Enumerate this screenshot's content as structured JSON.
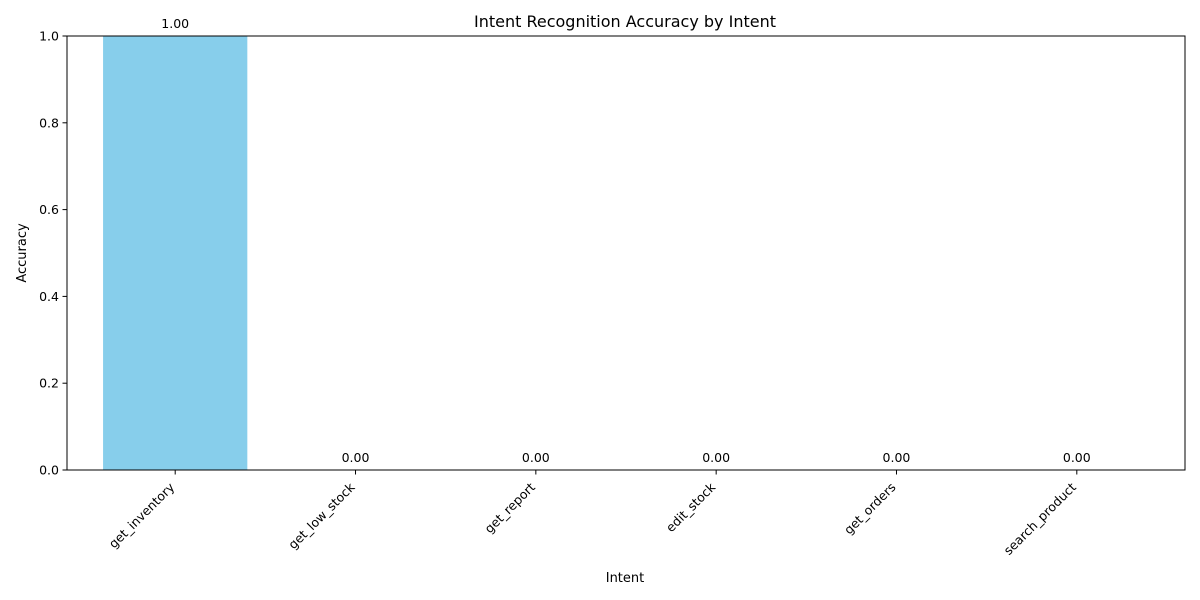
{
  "chart_data": {
    "type": "bar",
    "title": "Intent Recognition Accuracy by Intent",
    "xlabel": "Intent",
    "ylabel": "Accuracy",
    "categories": [
      "get_inventory",
      "get_low_stock",
      "get_report",
      "edit_stock",
      "get_orders",
      "search_product"
    ],
    "values": [
      1.0,
      0.0,
      0.0,
      0.0,
      0.0,
      0.0
    ],
    "data_labels": [
      "1.00",
      "0.00",
      "0.00",
      "0.00",
      "0.00",
      "0.00"
    ],
    "ylim": [
      0,
      1.0
    ],
    "yticks": [
      0.0,
      0.2,
      0.4,
      0.6,
      0.8,
      1.0
    ],
    "ytick_labels": [
      "0.0",
      "0.2",
      "0.4",
      "0.6",
      "0.8",
      "1.0"
    ],
    "bar_color": "#87ceeb",
    "grid": false,
    "xtick_rotation": 45
  }
}
